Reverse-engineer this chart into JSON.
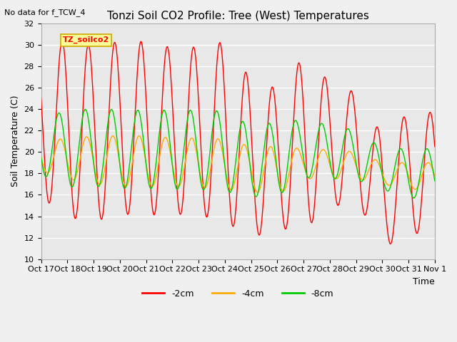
{
  "title": "Tonzi Soil CO2 Profile: Tree (West) Temperatures",
  "subtitle": "No data for f_TCW_4",
  "ylabel": "Soil Temperature (C)",
  "xlabel": "Time",
  "ylim": [
    10,
    32
  ],
  "yticks": [
    10,
    12,
    14,
    16,
    18,
    20,
    22,
    24,
    26,
    28,
    30,
    32
  ],
  "xtick_labels": [
    "Oct",
    "17Oct",
    "18Oct",
    "19Oct",
    "20Oct",
    "21Oct",
    "22Oct",
    "23Oct",
    "24Oct",
    "25Oct",
    "26Oct",
    "27Oct",
    "28Oct",
    "29Oct",
    "30Oct",
    "31Nov 1"
  ],
  "xtick_labels2": [
    "Oct 17",
    "Oct 18",
    "Oct 19",
    "Oct 20",
    "Oct 21",
    "Oct 22",
    "Oct 23",
    "Oct 24",
    "Oct 25",
    "Oct 26",
    "Oct 27",
    "Oct 28",
    "Oct 29",
    "Oct 30",
    "Oct 31",
    "Nov 1"
  ],
  "line_colors": [
    "#ff0000",
    "#ffaa00",
    "#00cc00"
  ],
  "line_labels": [
    "-2cm",
    "-4cm",
    "-8cm"
  ],
  "legend_box_label": "TZ_soilco2",
  "legend_box_color": "#ffff99",
  "legend_box_edge": "#ccaa00",
  "bg_color": "#e8e8e8",
  "grid_color": "#ffffff",
  "title_fontsize": 11,
  "label_fontsize": 9,
  "tick_fontsize": 8,
  "n_days": 15,
  "red_peaks": [
    29.9,
    30.5,
    29.9,
    30.3,
    30.3,
    29.7,
    29.8,
    30.3,
    26.7,
    25.9,
    28.9,
    26.5,
    25.5,
    21.5,
    23.7
  ],
  "red_troughs": [
    15.8,
    13.9,
    13.5,
    14.2,
    14.1,
    14.2,
    14.1,
    13.5,
    12.0,
    12.8,
    12.8,
    14.8,
    15.5,
    11.0,
    12.4
  ],
  "orange_peaks": [
    21.2,
    21.2,
    21.5,
    21.5,
    21.5,
    21.3,
    21.3,
    21.2,
    20.5,
    20.5,
    20.3,
    20.2,
    20.0,
    19.0,
    19.0
  ],
  "orange_troughs": [
    18.2,
    17.5,
    17.0,
    16.8,
    16.8,
    16.8,
    16.7,
    16.5,
    16.3,
    16.0,
    17.5,
    17.5,
    17.5,
    17.0,
    16.5
  ],
  "green_peaks": [
    23.5,
    23.7,
    24.1,
    23.9,
    23.9,
    23.9,
    23.9,
    23.8,
    22.4,
    22.8,
    23.0,
    22.5,
    22.0,
    20.3,
    20.3
  ],
  "green_troughs": [
    17.9,
    16.7,
    16.8,
    16.6,
    16.6,
    16.5,
    16.5,
    16.3,
    15.8,
    15.9,
    17.6,
    17.5,
    17.4,
    16.5,
    15.7
  ]
}
